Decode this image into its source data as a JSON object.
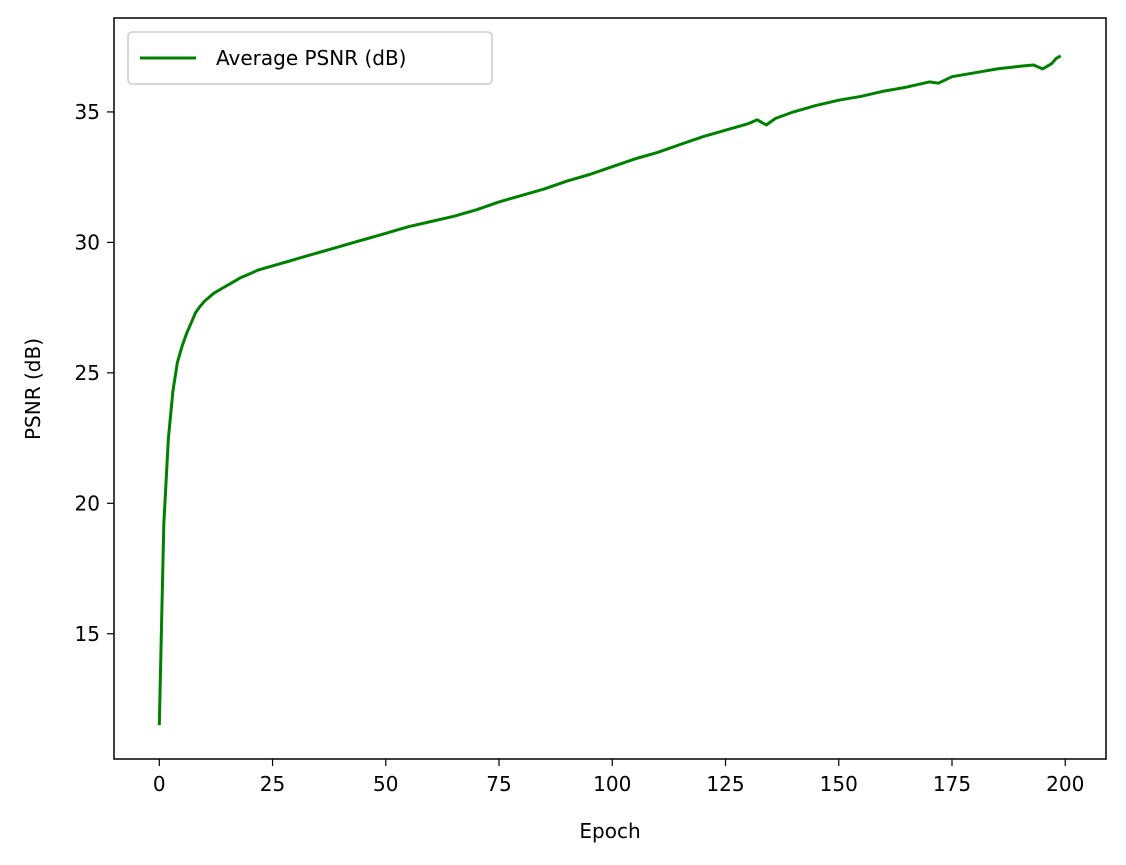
{
  "chart_data": {
    "type": "line",
    "title": "",
    "xlabel": "Epoch",
    "ylabel": "PSNR (dB)",
    "xlim": [
      -10,
      209
    ],
    "ylim": [
      10.2,
      38.6
    ],
    "xticks": [
      0,
      25,
      50,
      75,
      100,
      125,
      150,
      175,
      200
    ],
    "yticks": [
      15,
      20,
      25,
      30,
      35
    ],
    "grid": false,
    "legend_position": "top-left",
    "series": [
      {
        "name": "Average PSNR (dB)",
        "color": "#008000",
        "x": [
          0,
          1,
          2,
          3,
          4,
          5,
          6,
          7,
          8,
          9,
          10,
          12,
          14,
          16,
          18,
          20,
          22,
          24,
          26,
          28,
          30,
          32,
          34,
          36,
          38,
          40,
          42,
          44,
          46,
          48,
          50,
          55,
          60,
          65,
          70,
          75,
          80,
          85,
          90,
          95,
          100,
          105,
          110,
          115,
          120,
          125,
          130,
          132,
          134,
          136,
          140,
          145,
          150,
          155,
          160,
          165,
          170,
          172,
          175,
          180,
          185,
          190,
          193,
          195,
          197,
          198,
          199
        ],
        "y": [
          11.5,
          19.2,
          22.5,
          24.3,
          25.4,
          26.0,
          26.5,
          26.9,
          27.3,
          27.55,
          27.75,
          28.05,
          28.25,
          28.45,
          28.65,
          28.8,
          28.95,
          29.05,
          29.15,
          29.25,
          29.35,
          29.45,
          29.55,
          29.65,
          29.75,
          29.85,
          29.95,
          30.05,
          30.15,
          30.25,
          30.35,
          30.6,
          30.8,
          31.0,
          31.25,
          31.55,
          31.8,
          32.05,
          32.35,
          32.6,
          32.9,
          33.2,
          33.45,
          33.75,
          34.05,
          34.3,
          34.55,
          34.7,
          34.5,
          34.75,
          35.0,
          35.25,
          35.45,
          35.6,
          35.8,
          35.95,
          36.15,
          36.1,
          36.35,
          36.5,
          36.65,
          36.75,
          36.8,
          36.65,
          36.85,
          37.05,
          37.15
        ]
      }
    ]
  }
}
